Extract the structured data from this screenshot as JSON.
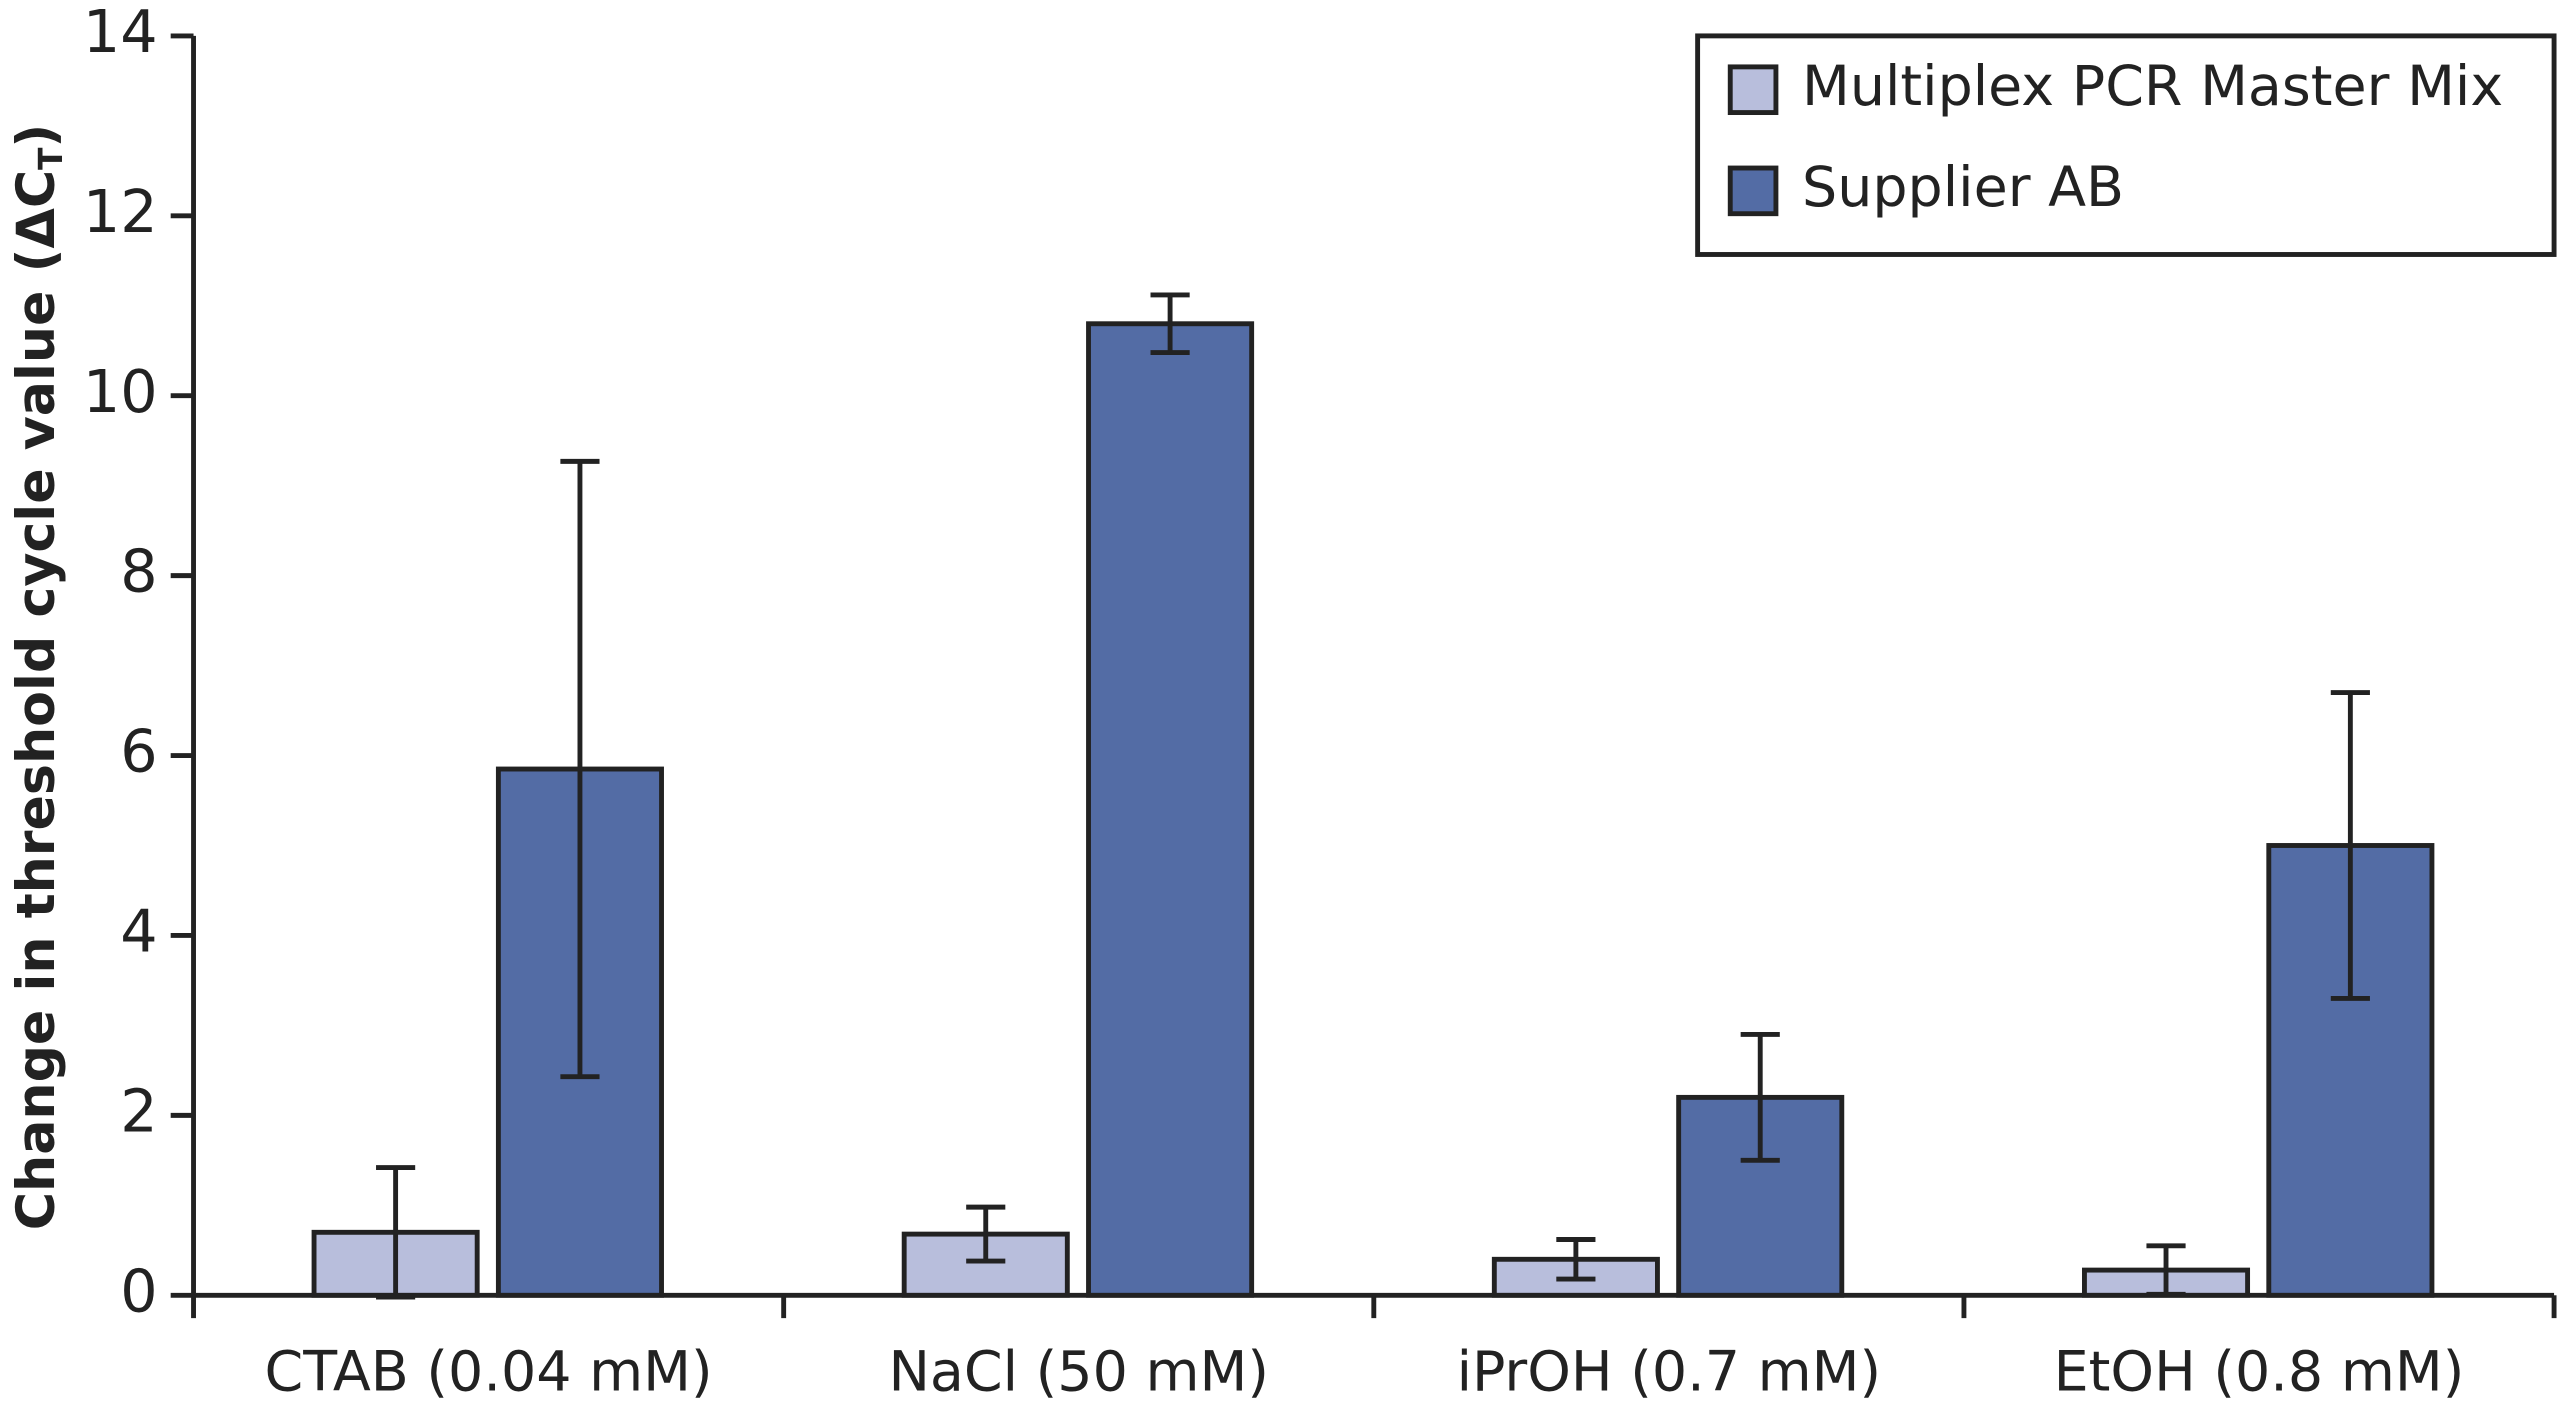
{
  "chart_data": {
    "type": "bar",
    "ylabel": {
      "text": "Change in threshold cycle value (ΔC",
      "subscript": "T",
      "close": ")"
    },
    "categories": [
      "CTAB (0.04 mM)",
      "NaCl (50 mM)",
      "iPrOH (0.7 mM)",
      "EtOH (0.8 mM)"
    ],
    "series": [
      {
        "name": "Multiplex PCR Master Mix",
        "color": "#b8bedc",
        "values": [
          0.7,
          0.68,
          0.4,
          0.28
        ],
        "errors": [
          0.72,
          0.3,
          0.22,
          0.27
        ]
      },
      {
        "name": "Supplier AB",
        "color": "#536ca5",
        "values": [
          5.85,
          10.8,
          2.2,
          5.0
        ],
        "errors": [
          3.42,
          0.32,
          0.7,
          1.7
        ]
      }
    ],
    "ylim": [
      0,
      14
    ],
    "yticks": [
      0,
      2,
      4,
      6,
      8,
      10,
      12,
      14
    ],
    "grid": false,
    "legend": "top-right"
  }
}
